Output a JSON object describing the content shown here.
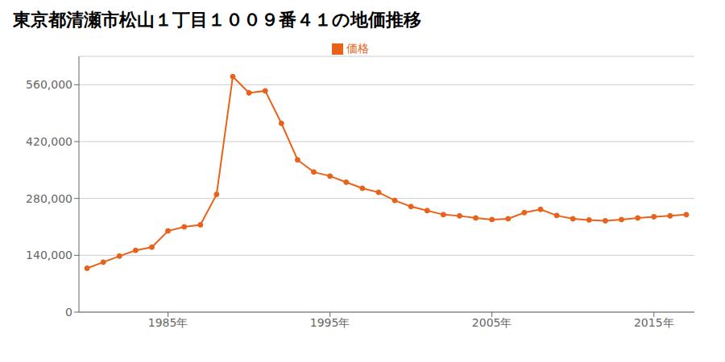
{
  "chart_data": {
    "type": "line",
    "title": "東京都清瀬市松山１丁目１００９番４１の地価推移",
    "x": [
      1980,
      1981,
      1982,
      1983,
      1984,
      1985,
      1986,
      1987,
      1988,
      1989,
      1990,
      1991,
      1992,
      1993,
      1994,
      1995,
      1996,
      1997,
      1998,
      1999,
      2000,
      2001,
      2002,
      2003,
      2004,
      2005,
      2006,
      2007,
      2008,
      2009,
      2010,
      2011,
      2012,
      2013,
      2014,
      2015,
      2016,
      2017
    ],
    "series": [
      {
        "name": "価格",
        "color": "#e8621a",
        "marker": "circle",
        "values": [
          108000,
          123000,
          138000,
          152000,
          160000,
          200000,
          210000,
          215000,
          290000,
          580000,
          540000,
          545000,
          465000,
          375000,
          345000,
          335000,
          320000,
          305000,
          295000,
          275000,
          260000,
          250000,
          240000,
          237000,
          232000,
          228000,
          230000,
          245000,
          253000,
          238000,
          230000,
          227000,
          225000,
          228000,
          232000,
          235000,
          237000,
          240000
        ]
      }
    ],
    "xlim": [
      1979.5,
      2017.5
    ],
    "xticks": [
      {
        "value": 1985,
        "label": "1985年"
      },
      {
        "value": 1995,
        "label": "1995年"
      },
      {
        "value": 2005,
        "label": "2005年"
      },
      {
        "value": 2015,
        "label": "2015年"
      }
    ],
    "ylim": [
      0,
      630000
    ],
    "yticks": [
      0,
      {
        "value": 140000,
        "label": "140,000"
      },
      {
        "value": 280000,
        "label": "280,000"
      },
      {
        "value": 420000,
        "label": "420,000"
      },
      {
        "value": 560000,
        "label": "560,000"
      }
    ],
    "grid": "y",
    "legend": "top"
  }
}
